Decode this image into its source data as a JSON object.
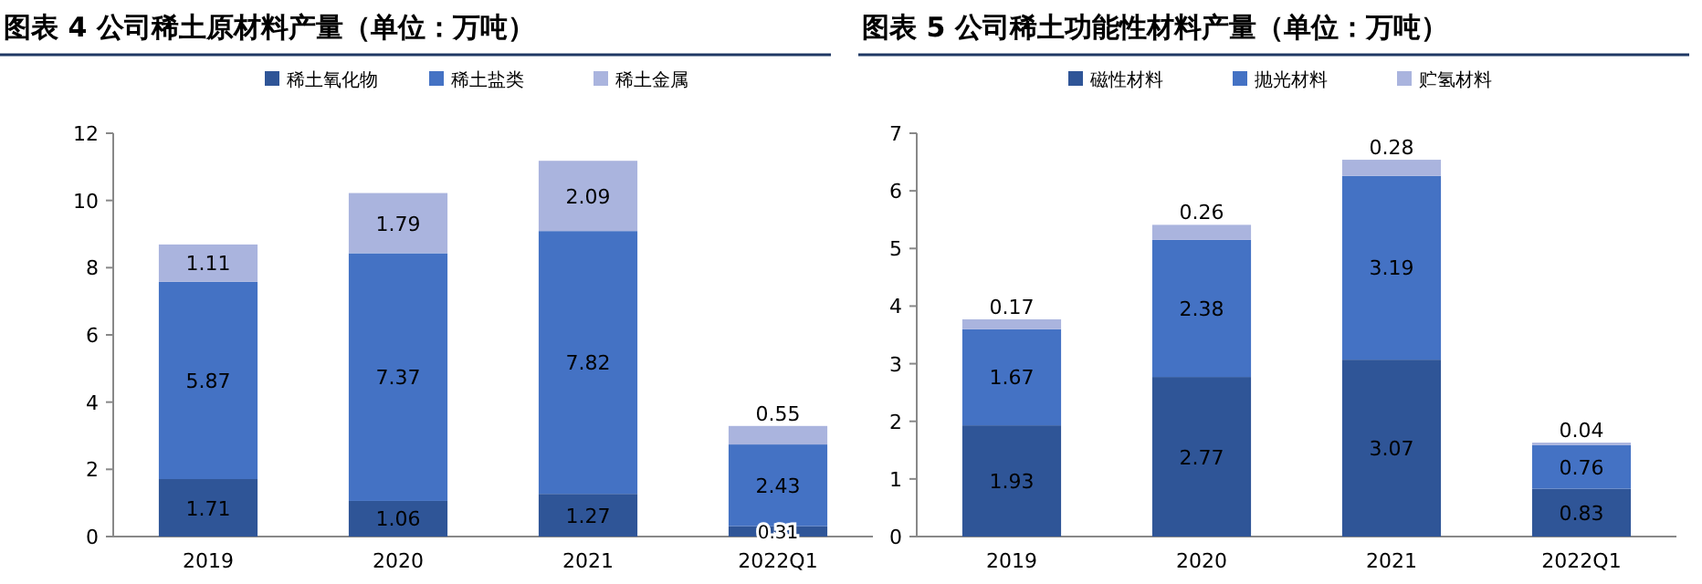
{
  "chart_data": [
    {
      "type": "bar",
      "title": "图表 4 公司稀土原材料产量（单位：万吨）",
      "categories": [
        "2019",
        "2020",
        "2021",
        "2022Q1"
      ],
      "stacked": true,
      "data_labels": true,
      "legend": "top",
      "ylim": [
        0,
        12
      ],
      "yticks": [
        0,
        2,
        4,
        6,
        8,
        10,
        12
      ],
      "series": [
        {
          "name": "稀土氧化物",
          "color": "#2f5597",
          "values": [
            1.71,
            1.06,
            1.27,
            0.31
          ]
        },
        {
          "name": "稀土盐类",
          "color": "#4472c4",
          "values": [
            5.87,
            7.37,
            7.82,
            2.43
          ]
        },
        {
          "name": "稀土金属",
          "color": "#aab4de",
          "values": [
            1.11,
            1.79,
            2.09,
            0.55
          ]
        }
      ]
    },
    {
      "type": "bar",
      "title": "图表 5 公司稀土功能性材料产量（单位：万吨）",
      "categories": [
        "2019",
        "2020",
        "2021",
        "2022Q1"
      ],
      "stacked": true,
      "data_labels": true,
      "legend": "top",
      "ylim": [
        0,
        7
      ],
      "yticks": [
        0,
        1,
        2,
        3,
        4,
        5,
        6,
        7
      ],
      "series": [
        {
          "name": "磁性材料",
          "color": "#2f5597",
          "values": [
            1.93,
            2.77,
            3.07,
            0.83
          ]
        },
        {
          "name": "抛光材料",
          "color": "#4472c4",
          "values": [
            1.67,
            2.38,
            3.19,
            0.76
          ]
        },
        {
          "name": "贮氢材料",
          "color": "#aab4de",
          "values": [
            0.17,
            0.26,
            0.28,
            0.04
          ]
        }
      ]
    }
  ]
}
